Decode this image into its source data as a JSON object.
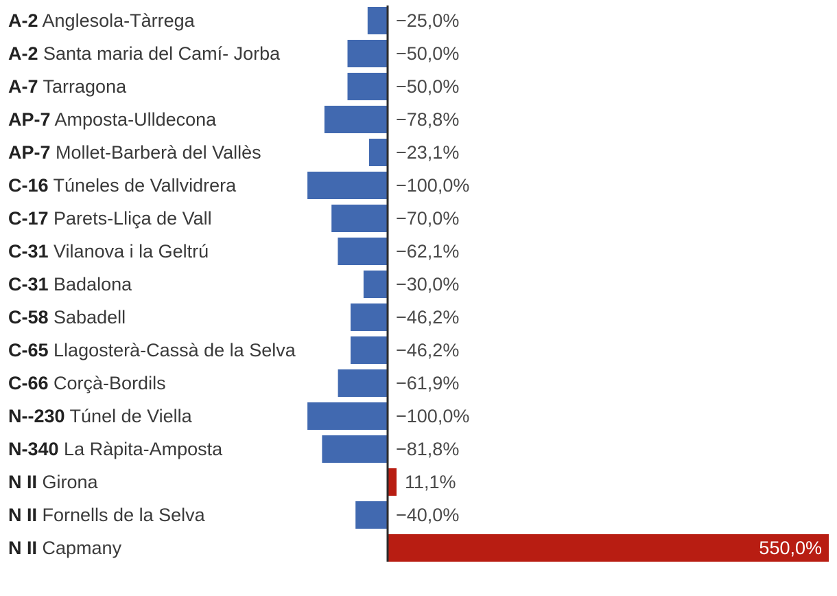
{
  "chart_data": {
    "type": "bar",
    "orientation": "horizontal",
    "categories": [
      {
        "road": "A-2",
        "place": "Anglesola-Tàrrega"
      },
      {
        "road": "A-2",
        "place": "Santa maria del Camí- Jorba"
      },
      {
        "road": "A-7",
        "place": "Tarragona"
      },
      {
        "road": "AP-7",
        "place": "Amposta-Ulldecona"
      },
      {
        "road": "AP-7",
        "place": "Mollet-Barberà del Vallès"
      },
      {
        "road": "C-16",
        "place": "Túneles de Vallvidrera"
      },
      {
        "road": "C-17",
        "place": "Parets-Lliça de Vall"
      },
      {
        "road": "C-31",
        "place": "Vilanova i la Geltrú"
      },
      {
        "road": "C-31",
        "place": "Badalona"
      },
      {
        "road": "C-58",
        "place": "Sabadell"
      },
      {
        "road": "C-65",
        "place": "Llagosterà-Cassà de la Selva"
      },
      {
        "road": "C-66",
        "place": "Corçà-Bordils"
      },
      {
        "road": "N--230",
        "place": "Túnel de Viella"
      },
      {
        "road": "N-340",
        "place": "La Ràpita-Amposta"
      },
      {
        "road": "N II",
        "place": "Girona"
      },
      {
        "road": "N II",
        "place": "Fornells de la Selva"
      },
      {
        "road": "N II",
        "place": "Capmany"
      }
    ],
    "values": [
      -25.0,
      -50.0,
      -50.0,
      -78.8,
      -23.1,
      -100.0,
      -70.0,
      -62.1,
      -30.0,
      -46.2,
      -46.2,
      -61.9,
      -100.0,
      -81.8,
      11.1,
      -40.0,
      550.0
    ],
    "value_labels": [
      "−25,0%",
      "−50,0%",
      "−50,0%",
      "−78,8%",
      "−23,1%",
      "−100,0%",
      "−70,0%",
      "−62,1%",
      "−30,0%",
      "−46,2%",
      "−46,2%",
      "−61,9%",
      "−100,0%",
      "−81,8%",
      "11,1%",
      "−40,0%",
      "550,0%"
    ],
    "xlim": [
      -100,
      550
    ],
    "title": "",
    "xlabel": "",
    "ylabel": "",
    "grid": false,
    "legend": "none",
    "colors": {
      "negative": "#4169b0",
      "positive": "#b81d12",
      "axis": "#2b2b2b"
    }
  }
}
